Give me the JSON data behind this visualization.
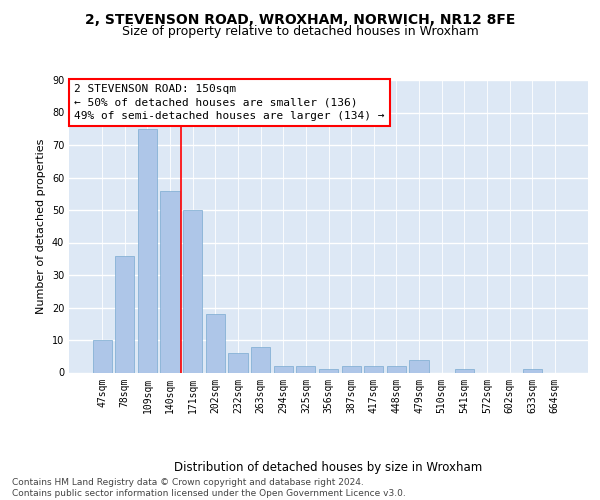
{
  "title": "2, STEVENSON ROAD, WROXHAM, NORWICH, NR12 8FE",
  "subtitle": "Size of property relative to detached houses in Wroxham",
  "xlabel": "Distribution of detached houses by size in Wroxham",
  "ylabel": "Number of detached properties",
  "categories": [
    "47sqm",
    "78sqm",
    "109sqm",
    "140sqm",
    "171sqm",
    "202sqm",
    "232sqm",
    "263sqm",
    "294sqm",
    "325sqm",
    "356sqm",
    "387sqm",
    "417sqm",
    "448sqm",
    "479sqm",
    "510sqm",
    "541sqm",
    "572sqm",
    "602sqm",
    "633sqm",
    "664sqm"
  ],
  "values": [
    10,
    36,
    75,
    56,
    50,
    18,
    6,
    8,
    2,
    2,
    1,
    2,
    2,
    2,
    4,
    0,
    1,
    0,
    0,
    1,
    0
  ],
  "bar_color": "#aec6e8",
  "bar_edge_color": "#7aaad0",
  "vline_x": 3.5,
  "vline_color": "red",
  "annotation_text": "2 STEVENSON ROAD: 150sqm\n← 50% of detached houses are smaller (136)\n49% of semi-detached houses are larger (134) →",
  "annotation_box_color": "white",
  "annotation_box_edge": "red",
  "ylim": [
    0,
    90
  ],
  "yticks": [
    0,
    10,
    20,
    30,
    40,
    50,
    60,
    70,
    80,
    90
  ],
  "background_color": "#dde8f5",
  "grid_color": "#ffffff",
  "footer": "Contains HM Land Registry data © Crown copyright and database right 2024.\nContains public sector information licensed under the Open Government Licence v3.0.",
  "title_fontsize": 10,
  "subtitle_fontsize": 9,
  "xlabel_fontsize": 8.5,
  "ylabel_fontsize": 8,
  "tick_fontsize": 7,
  "annotation_fontsize": 8,
  "footer_fontsize": 6.5
}
